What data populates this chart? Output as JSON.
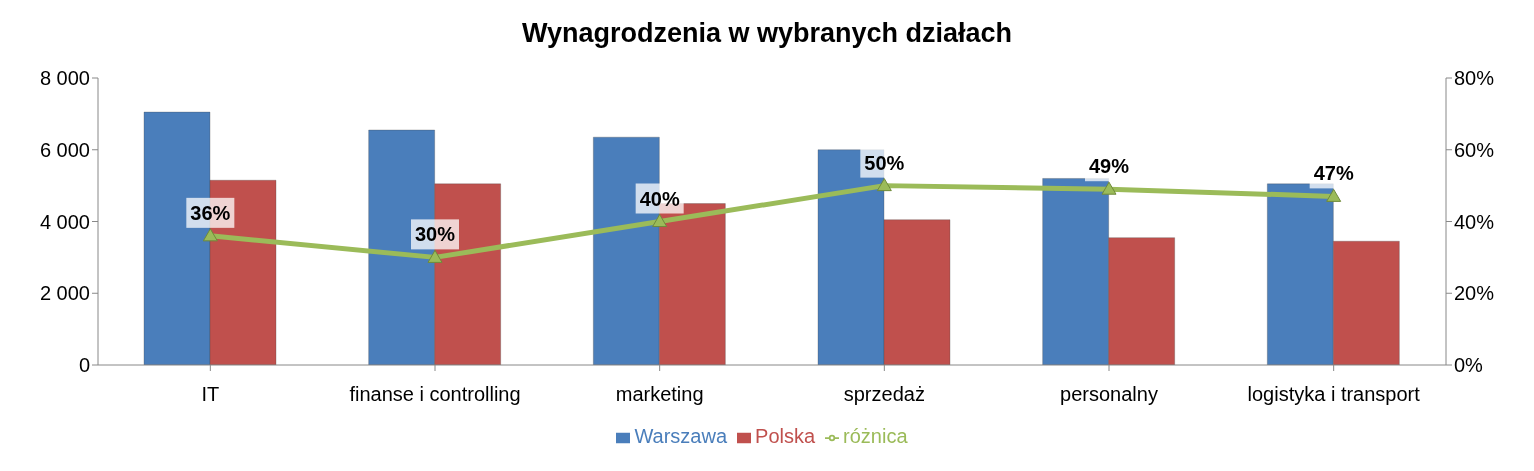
{
  "chart_data": {
    "type": "bar",
    "title": "Wynagrodzenia w wybranych działach",
    "categories": [
      "IT",
      "finanse i controlling",
      "marketing",
      "sprzedaż",
      "personalny",
      "logistyka i transport"
    ],
    "series": [
      {
        "name": "Warszawa",
        "color": "#4a7ebb",
        "values": [
          7050,
          6550,
          6350,
          6000,
          5200,
          5050
        ]
      },
      {
        "name": "Polska",
        "color": "#c0504d",
        "values": [
          5150,
          5050,
          4500,
          4050,
          3550,
          3450
        ]
      },
      {
        "name": "różnica",
        "type": "line",
        "axis": "y2",
        "color": "#9bbb59",
        "marker": "triangle",
        "values": [
          36,
          30,
          40,
          50,
          49,
          47
        ],
        "value_labels": [
          "36%",
          "30%",
          "40%",
          "50%",
          "49%",
          "47%"
        ]
      }
    ],
    "ylim": [
      0,
      8000
    ],
    "yticks": [
      {
        "value": 0,
        "label": "0"
      },
      {
        "value": 2000,
        "label": "2 000"
      },
      {
        "value": 4000,
        "label": "4 000"
      },
      {
        "value": 6000,
        "label": "6 000"
      },
      {
        "value": 8000,
        "label": "8 000"
      }
    ],
    "y2lim": [
      0,
      80
    ],
    "y2ticks": [
      {
        "value": 0,
        "label": "0%"
      },
      {
        "value": 20,
        "label": "20%"
      },
      {
        "value": 40,
        "label": "40%"
      },
      {
        "value": 60,
        "label": "60%"
      },
      {
        "value": 80,
        "label": "80%"
      }
    ],
    "grid": false,
    "legend": "bottom"
  }
}
